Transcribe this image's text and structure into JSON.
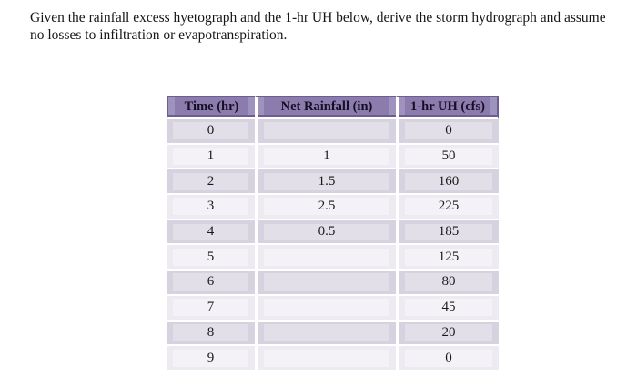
{
  "problem": {
    "lines": [
      "Given the rainfall excess hyetograph and the 1-hr UH below, derive the storm hydrograph and assume",
      "no losses to infiltration or evapotranspiration."
    ]
  },
  "table": {
    "headers": {
      "time": "Time (hr)",
      "rain": "Net Rainfall (in)",
      "uh": "1-hr UH (cfs)"
    },
    "rows": [
      {
        "time": "0",
        "rain": "",
        "uh": "0"
      },
      {
        "time": "1",
        "rain": "1",
        "uh": "50"
      },
      {
        "time": "2",
        "rain": "1.5",
        "uh": "160"
      },
      {
        "time": "3",
        "rain": "2.5",
        "uh": "225"
      },
      {
        "time": "4",
        "rain": "0.5",
        "uh": "185"
      },
      {
        "time": "5",
        "rain": "",
        "uh": "125"
      },
      {
        "time": "6",
        "rain": "",
        "uh": "80"
      },
      {
        "time": "7",
        "rain": "",
        "uh": "45"
      },
      {
        "time": "8",
        "rain": "",
        "uh": "20"
      },
      {
        "time": "9",
        "rain": "",
        "uh": "0"
      }
    ]
  },
  "colors": {
    "header_bg": "#8b7cad",
    "header_border": "#6d5e92",
    "row_even_bg": "#d7d2df",
    "row_odd_bg": "#edebf1",
    "text": "#1a1a1a"
  }
}
